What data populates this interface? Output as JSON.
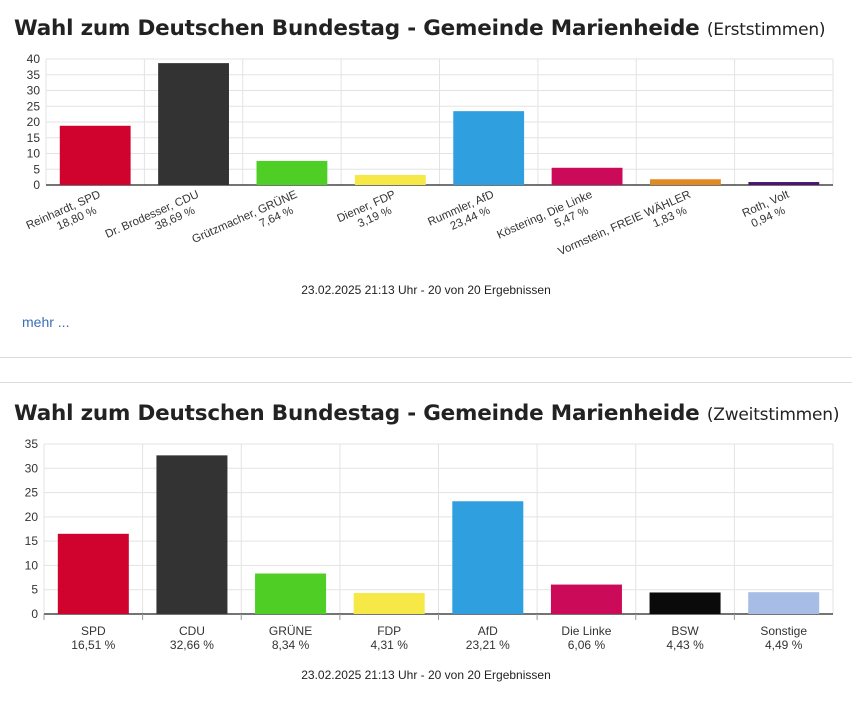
{
  "panels": [
    {
      "title_main": "Wahl zum Deutschen Bundestag - Gemeinde Marienheide",
      "title_sub": "(Erststimmen)",
      "timestamp": "23.02.2025 21:13 Uhr - 20 von 20 Ergebnissen",
      "more_link": "mehr ..."
    },
    {
      "title_main": "Wahl zum Deutschen Bundestag - Gemeinde Marienheide",
      "title_sub": "(Zweitstimmen)",
      "timestamp": "23.02.2025 21:13 Uhr - 20 von 20 Ergebnissen"
    }
  ],
  "chart_data": [
    {
      "type": "bar",
      "title": "Wahl zum Deutschen Bundestag - Gemeinde Marienheide (Erststimmen)",
      "ylim": [
        0,
        40
      ],
      "yticks": [
        0,
        5,
        10,
        15,
        20,
        25,
        30,
        35,
        40
      ],
      "grid": true,
      "label_style": "rotated",
      "categories": [
        "Reinhardt, SPD",
        "Dr. Brodesser, CDU",
        "Grützmacher, GRÜNE",
        "Diener, FDP",
        "Rummler, AfD",
        "Köstering, Die Linke",
        "Vormstein, FREIE WÄHLER",
        "Roth, Volt"
      ],
      "value_labels": [
        "18,80 %",
        "38,69 %",
        "7,64 %",
        "3,19 %",
        "23,44 %",
        "5,47 %",
        "1,83 %",
        "0,94 %"
      ],
      "values": [
        18.8,
        38.69,
        7.64,
        3.19,
        23.44,
        5.47,
        1.83,
        0.94
      ],
      "colors": [
        "#d0022e",
        "#333333",
        "#4fcf25",
        "#f5e847",
        "#2f9fe0",
        "#cc0a5a",
        "#e08a22",
        "#4a1470"
      ]
    },
    {
      "type": "bar",
      "title": "Wahl zum Deutschen Bundestag - Gemeinde Marienheide (Zweitstimmen)",
      "ylim": [
        0,
        35
      ],
      "yticks": [
        0,
        5,
        10,
        15,
        20,
        25,
        30,
        35
      ],
      "grid": true,
      "label_style": "horizontal",
      "categories": [
        "SPD",
        "CDU",
        "GRÜNE",
        "FDP",
        "AfD",
        "Die Linke",
        "BSW",
        "Sonstige"
      ],
      "value_labels": [
        "16,51 %",
        "32,66 %",
        "8,34 %",
        "4,31 %",
        "23,21 %",
        "6,06 %",
        "4,43 %",
        "4,49 %"
      ],
      "values": [
        16.51,
        32.66,
        8.34,
        4.31,
        23.21,
        6.06,
        4.43,
        4.49
      ],
      "colors": [
        "#d0022e",
        "#333333",
        "#4fcf25",
        "#f5e847",
        "#2f9fe0",
        "#cc0a5a",
        "#0a0a0a",
        "#a8bde6"
      ]
    }
  ]
}
